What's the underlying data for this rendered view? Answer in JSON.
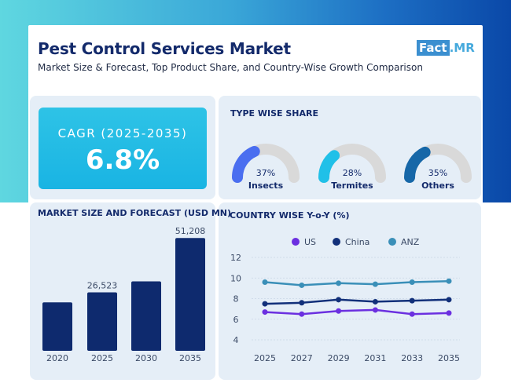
{
  "header": {
    "title": "Pest Control Services Market",
    "subtitle": "Market Size & Forecast, Top Product Share, and Country-Wise Growth Comparison",
    "logo_fact": "Fact",
    "logo_mr": ".MR"
  },
  "cagr": {
    "label": "CAGR (2025-2035)",
    "value": "6.8%"
  },
  "colors": {
    "navy": "#0e2a6e",
    "blue_gauge": "#4a6ef0",
    "cyan_gauge": "#20c0e8",
    "teal_gauge": "#1667a8",
    "gauge_track": "#d9d9d9",
    "us": "#6b2fe0",
    "china": "#12307a",
    "anz": "#3a8fb8"
  },
  "chart_data": [
    {
      "type": "pie",
      "title": "TYPE WISE SHARE",
      "slices": [
        {
          "label": "Insects",
          "value": 37,
          "display": "37%",
          "color": "#4a6ef0"
        },
        {
          "label": "Termites",
          "value": 28,
          "display": "28%",
          "color": "#20c0e8"
        },
        {
          "label": "Others",
          "value": 35,
          "display": "35%",
          "color": "#1667a8"
        }
      ]
    },
    {
      "type": "bar",
      "title": "MARKET SIZE AND FORECAST (USD MN)",
      "categories": [
        "2020",
        "2025",
        "2030",
        "2035"
      ],
      "values": [
        22000,
        26523,
        31500,
        51208
      ],
      "data_labels": [
        "",
        "26,523",
        "",
        "51,208"
      ],
      "ylim": [
        0,
        52000
      ]
    },
    {
      "type": "line",
      "title": "COUNTRY WISE Y-o-Y (%)",
      "x": [
        "2025",
        "2027",
        "2029",
        "2031",
        "2033",
        "2035"
      ],
      "yticks": [
        4,
        6,
        8,
        10,
        12
      ],
      "ylim": [
        4,
        12
      ],
      "legend": "top",
      "series": [
        {
          "name": "US",
          "color": "#6b2fe0",
          "values": [
            6.7,
            6.5,
            6.8,
            6.9,
            6.5,
            6.6
          ]
        },
        {
          "name": "China",
          "color": "#12307a",
          "values": [
            7.5,
            7.6,
            7.9,
            7.7,
            7.8,
            7.9
          ]
        },
        {
          "name": "ANZ",
          "color": "#3a8fb8",
          "values": [
            9.6,
            9.3,
            9.5,
            9.4,
            9.6,
            9.7
          ]
        }
      ]
    }
  ]
}
